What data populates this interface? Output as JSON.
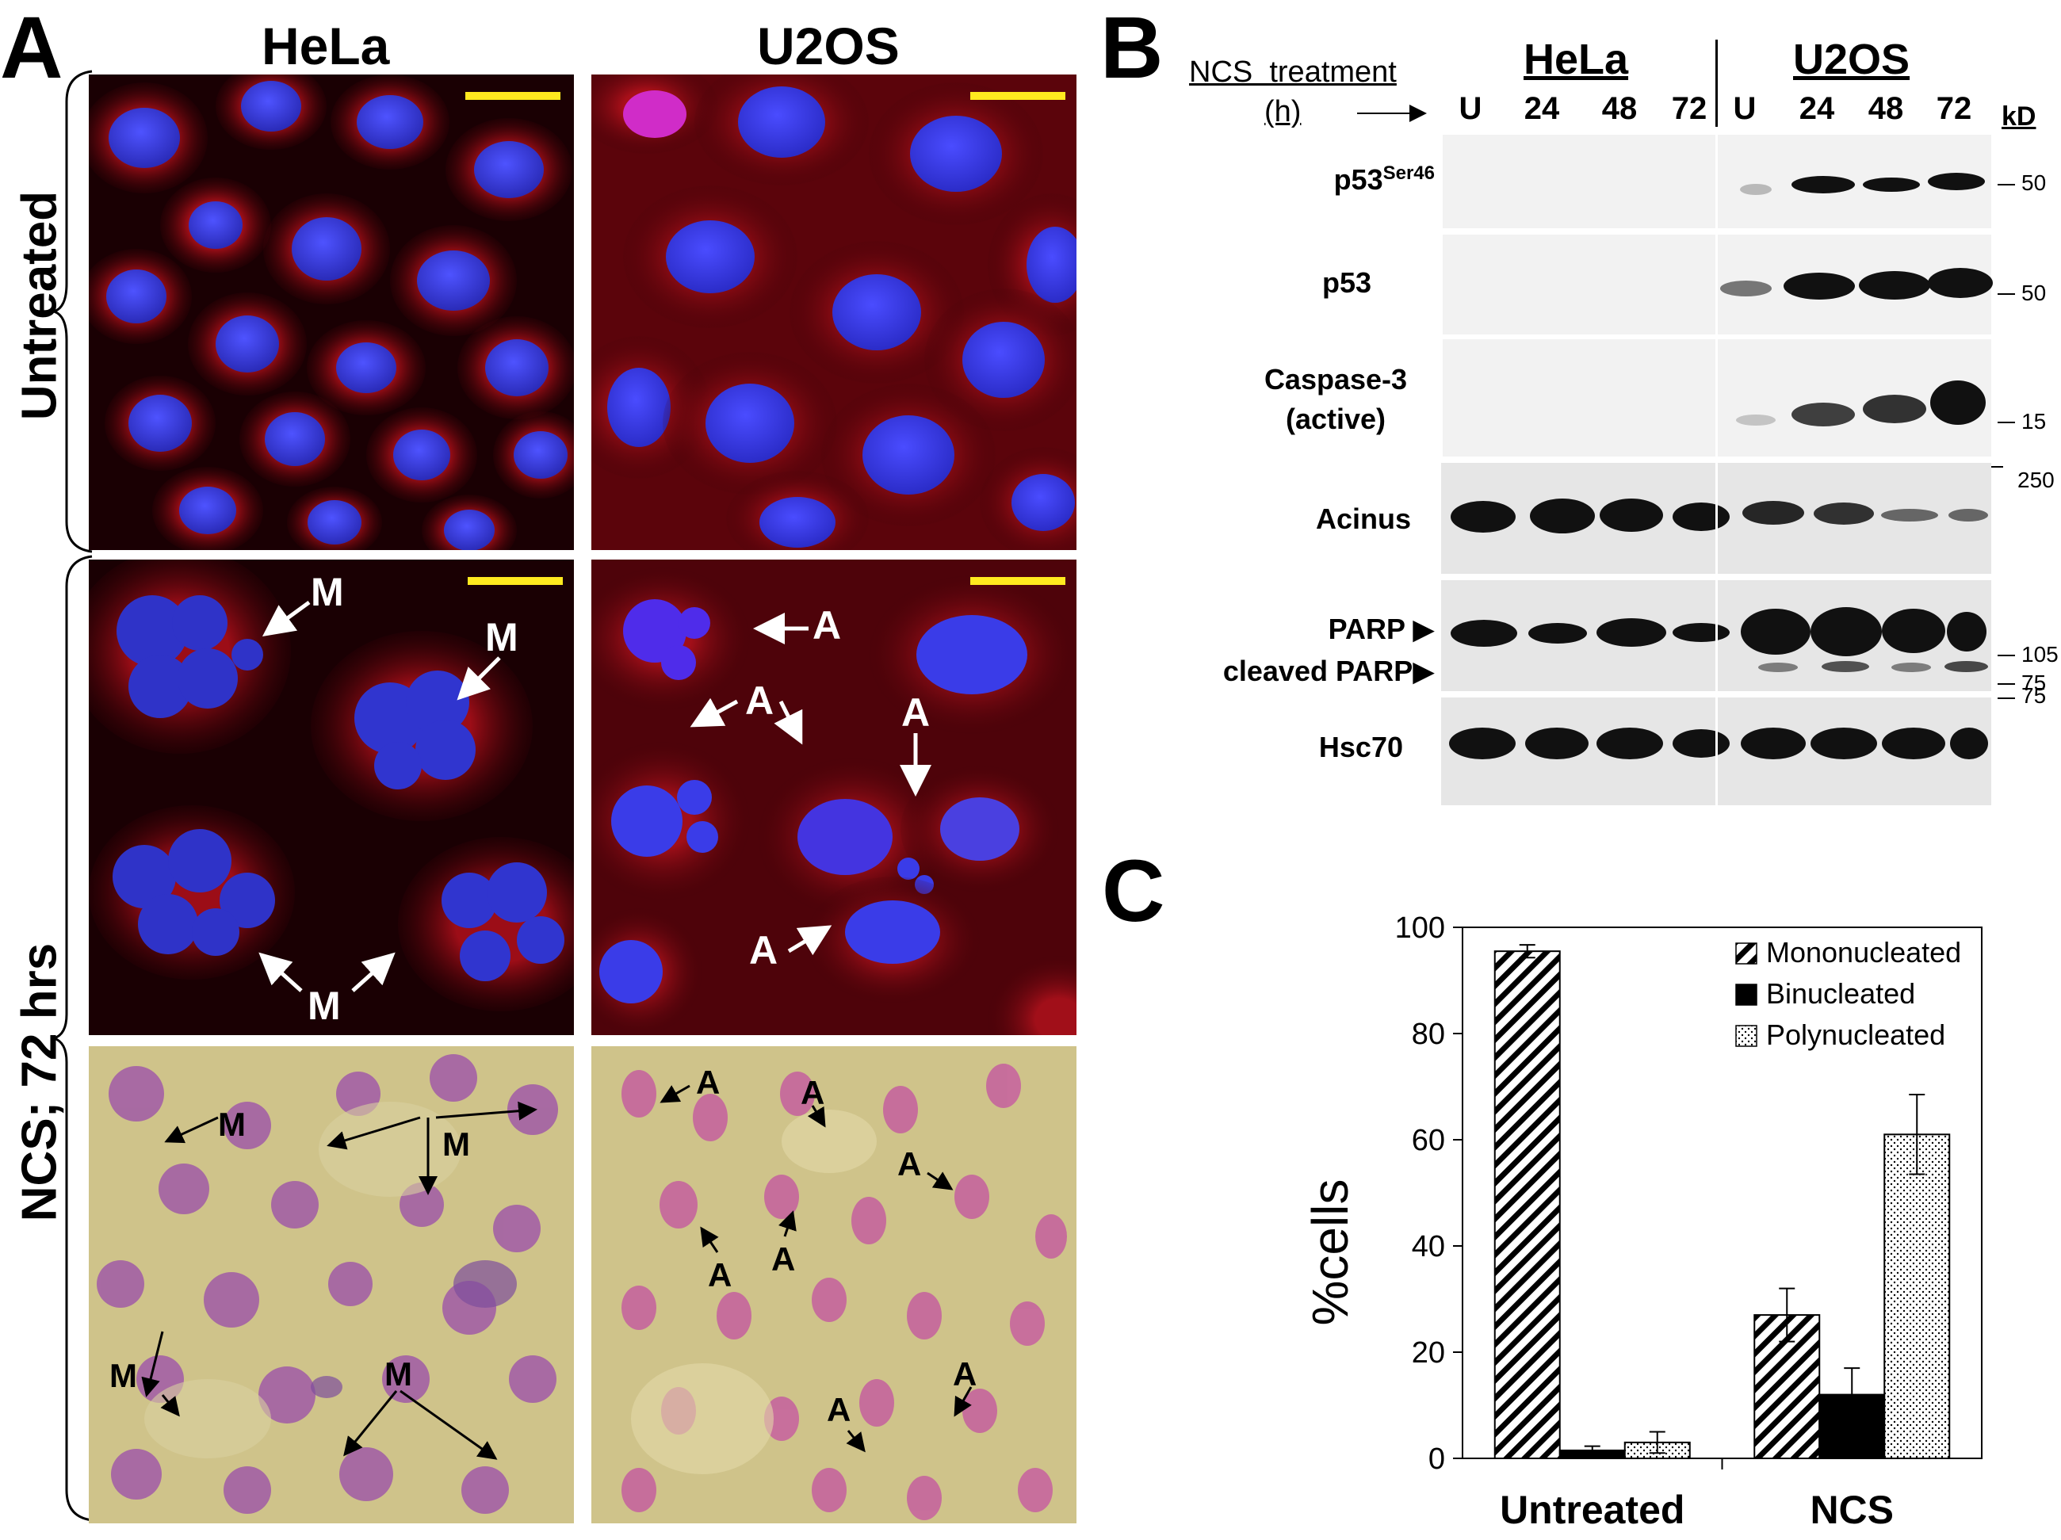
{
  "panel_a": {
    "letter": "A",
    "col_labels": [
      "HeLa",
      "U2OS"
    ],
    "row_labels": {
      "untreated": "Untreated",
      "ncs": "NCS; 72 hrs"
    },
    "annotations": {
      "mitotic": "M",
      "apoptotic": "A"
    }
  },
  "panel_b": {
    "letter": "B",
    "treatment_label": "NCS  treatment",
    "unit_label": "(h)",
    "cell_lines": [
      "HeLa",
      "U2OS"
    ],
    "lanes": [
      "U",
      "24",
      "48",
      "72",
      "U",
      "24",
      "48",
      "72"
    ],
    "kd_header": "kD",
    "blots": [
      {
        "label": "p53",
        "superscript": "Ser46",
        "markers": [
          "50"
        ]
      },
      {
        "label": "p53",
        "superscript": "",
        "markers": [
          "50"
        ]
      },
      {
        "label": "Caspase-3",
        "label2": "(active)",
        "markers": [
          "15"
        ]
      },
      {
        "label": "Acinus",
        "markers": [
          "250"
        ]
      },
      {
        "label": "PARP ▶",
        "label2": "cleaved PARP▶",
        "markers": [
          "105",
          "75"
        ]
      },
      {
        "label": "Hsc70",
        "markers": [
          "75"
        ]
      }
    ]
  },
  "panel_c": {
    "letter": "C",
    "chart_data": {
      "type": "bar",
      "categories": [
        "Untreated",
        "NCS"
      ],
      "series": [
        {
          "name": "Mononucleated",
          "values": [
            95.5,
            27
          ],
          "errors": [
            1.2,
            5
          ]
        },
        {
          "name": "Binucleated",
          "values": [
            1.5,
            12
          ],
          "errors": [
            0.8,
            5
          ]
        },
        {
          "name": "Polynucleated",
          "values": [
            3,
            61
          ],
          "errors": [
            2,
            7.5
          ]
        }
      ],
      "ylabel": "%cells",
      "ylim": [
        0,
        100
      ],
      "yticks": [
        "0",
        "20",
        "40",
        "60",
        "80",
        "100"
      ],
      "legend_position": "top-right"
    }
  },
  "colors": {
    "fluor_bg": "#1a0003",
    "nucleus_blue": "#3b3df0",
    "cytoplasm_red": "#c3121d",
    "bright_bg": "#cfc38a",
    "stain_pink": "#b45aa8",
    "scalebar": "#ffea1f"
  }
}
